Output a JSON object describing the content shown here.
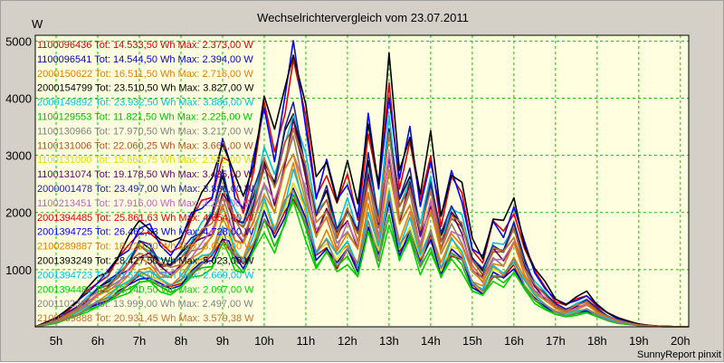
{
  "chart_data": {
    "type": "line",
    "title": "Wechselrichtervergleich vom 23.07.2011",
    "ylabel": "W",
    "xlabel": "",
    "footer": "SunnyReport pinxit",
    "x_ticks": [
      "5h",
      "6h",
      "7h",
      "8h",
      "9h",
      "10h",
      "11h",
      "12h",
      "13h",
      "14h",
      "15h",
      "16h",
      "17h",
      "18h",
      "19h",
      "20h"
    ],
    "y_ticks": [
      1000,
      2000,
      3000,
      4000,
      5000
    ],
    "xlim": [
      4.5,
      20.2
    ],
    "ylim": [
      0,
      5100
    ],
    "grid": true,
    "legend_position": "top-left",
    "colors": {
      "plot_background": "#ffffe0",
      "grid": "#00cc00",
      "frame": "#d4d0c8"
    },
    "x": [
      4.5,
      5.0,
      5.25,
      5.5,
      5.75,
      6.0,
      6.25,
      6.5,
      6.75,
      7.0,
      7.25,
      7.5,
      7.75,
      8.0,
      8.25,
      8.5,
      8.75,
      9.0,
      9.15,
      9.3,
      9.5,
      9.75,
      10.0,
      10.25,
      10.5,
      10.7,
      11.0,
      11.25,
      11.5,
      11.75,
      12.0,
      12.25,
      12.5,
      12.75,
      13.0,
      13.25,
      13.5,
      13.75,
      14.0,
      14.25,
      14.5,
      14.75,
      15.0,
      15.25,
      15.5,
      15.75,
      16.0,
      16.25,
      16.5,
      16.75,
      17.0,
      17.25,
      17.5,
      17.75,
      18.0,
      18.25,
      18.5,
      18.75,
      19.0,
      19.25,
      19.5,
      19.75,
      20.0,
      20.2
    ],
    "profile": [
      0,
      0.03,
      0.06,
      0.09,
      0.13,
      0.17,
      0.2,
      0.25,
      0.3,
      0.37,
      0.36,
      0.3,
      0.28,
      0.32,
      0.4,
      0.45,
      0.5,
      0.67,
      0.6,
      0.5,
      0.45,
      0.6,
      0.8,
      0.65,
      0.85,
      1.0,
      0.75,
      0.5,
      0.6,
      0.45,
      0.55,
      0.42,
      0.75,
      0.5,
      0.9,
      0.55,
      0.7,
      0.45,
      0.65,
      0.4,
      0.55,
      0.48,
      0.3,
      0.25,
      0.38,
      0.35,
      0.45,
      0.3,
      0.2,
      0.15,
      0.1,
      0.08,
      0.1,
      0.12,
      0.08,
      0.05,
      0.03,
      0.02,
      0.01,
      0.005,
      0.002,
      0.001,
      0,
      0
    ],
    "series": [
      {
        "name": "1100096436",
        "total": "14.533,50",
        "max": "2.373,00",
        "color": "#cc0000"
      },
      {
        "name": "1100096541",
        "total": "14.544,50",
        "max": "2.394,00",
        "color": "#0000cc"
      },
      {
        "name": "2000150622",
        "total": "16.511,50",
        "max": "2.716,00",
        "color": "#e08000"
      },
      {
        "name": "2000154799",
        "total": "23.510,50",
        "max": "3.827,00",
        "color": "#000000"
      },
      {
        "name": "2000149892",
        "total": "23.932,50",
        "max": "3.886,00",
        "color": "#00c0e0"
      },
      {
        "name": "1100129553",
        "total": "11.821,50",
        "max": "2.225,00",
        "color": "#00c000"
      },
      {
        "name": "1100130966",
        "total": "17.970,50",
        "max": "3.217,00",
        "color": "#808080"
      },
      {
        "name": "1100131006",
        "total": "22.060,25",
        "max": "3.661,00",
        "color": "#b05020"
      },
      {
        "name": "1100131000",
        "total": "15.865,75",
        "max": "2.582,00",
        "color": "#e0e000"
      },
      {
        "name": "1100131074",
        "total": "19.178,50",
        "max": "3.435,00",
        "color": "#600060"
      },
      {
        "name": "2000001478",
        "total": "23.497,00",
        "max": "3.886,00",
        "color": "#2020a0"
      },
      {
        "name": "1100213451",
        "total": "17.916,00",
        "max": "3.217,00",
        "color": "#c060c0"
      },
      {
        "name": "2001394485",
        "total": "25.861,63",
        "max": "4.654,00",
        "color": "#e00000"
      },
      {
        "name": "2001394725",
        "total": "26.462,63",
        "max": "4.728,00",
        "color": "#0000ff"
      },
      {
        "name": "2100289887",
        "total": "18.229,00",
        "max": "3.075,00",
        "color": "#e08000"
      },
      {
        "name": "2001393249",
        "total": "28.427,50",
        "max": "5.023,00",
        "color": "#000000"
      },
      {
        "name": "2001394723",
        "total": "15.524,00",
        "max": "2.669,00",
        "color": "#00c0e0"
      },
      {
        "name": "2001394481",
        "total": "12.140,50",
        "max": "2.097,00",
        "color": "#00d000"
      },
      {
        "name": "2001102303",
        "total": "13.999,00",
        "max": "2.497,00",
        "color": "#808080"
      },
      {
        "name": "2100289888",
        "total": "20.931,45",
        "max": "3.579,38",
        "color": "#c07030"
      }
    ],
    "legend_unit_tot": "Tot:",
    "legend_unit_wh": "Wh",
    "legend_unit_max": "Max:",
    "legend_unit_w": "W"
  }
}
